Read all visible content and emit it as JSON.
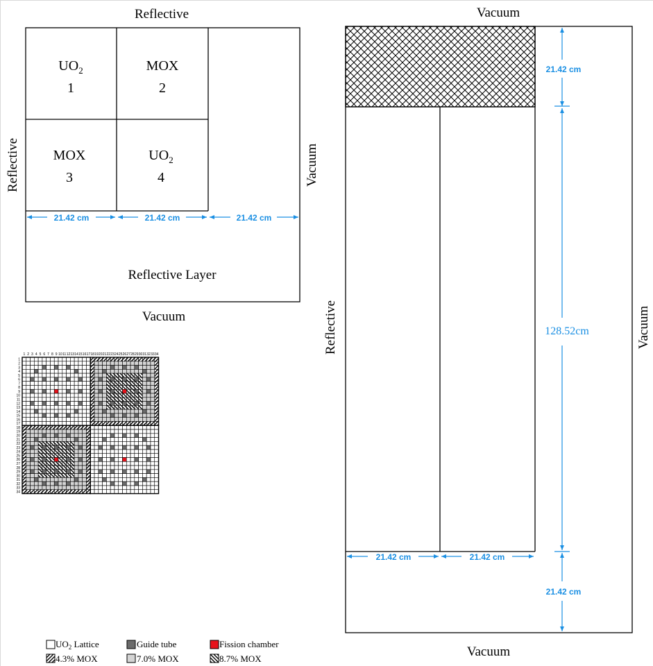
{
  "colors": {
    "line": "#000000",
    "dimension": "#1a8fe3",
    "guide_tube": "#6b6b6b",
    "fission_chamber": "#e8121b",
    "mox_7": "#d4d4d4",
    "background": "#ffffff"
  },
  "radial_view": {
    "top_boundary": "Reflective",
    "left_boundary": "Reflective",
    "right_boundary": "Vacuum",
    "bottom_boundary": "Vacuum",
    "reflector_label": "Reflective Layer",
    "assemblies": [
      {
        "name": "UO",
        "sub": "2",
        "number": "1"
      },
      {
        "name": "MOX",
        "sub": "",
        "number": "2"
      },
      {
        "name": "MOX",
        "sub": "",
        "number": "3"
      },
      {
        "name": "UO",
        "sub": "2",
        "number": "4"
      }
    ],
    "dimensions": [
      "21.42 cm",
      "21.42 cm",
      "21.42 cm"
    ]
  },
  "axial_view": {
    "top_boundary": "Vacuum",
    "left_boundary": "Reflective",
    "right_boundary": "Vacuum",
    "bottom_boundary": "Vacuum",
    "dim_top": "21.42 cm",
    "dim_core": "128.52cm",
    "dim_bottom": "21.42 cm",
    "dim_width_1": "21.42 cm",
    "dim_width_2": "21.42 cm"
  },
  "lattice": {
    "col_numbers": [
      "1",
      "2",
      "3",
      "4",
      "5",
      "6",
      "7",
      "8",
      "9",
      "10",
      "11",
      "12",
      "13",
      "14",
      "15",
      "16",
      "17",
      "18",
      "19",
      "20",
      "21",
      "22",
      "23",
      "24",
      "25",
      "26",
      "27",
      "28",
      "29",
      "30",
      "31",
      "32",
      "33",
      "34"
    ],
    "row_numbers": [
      "1",
      "2",
      "3",
      "4",
      "5",
      "6",
      "7",
      "8",
      "9",
      "10",
      "11",
      "12",
      "13",
      "14",
      "15",
      "16",
      "17",
      "18",
      "19",
      "20",
      "21",
      "22",
      "23",
      "24",
      "25",
      "26",
      "27",
      "28",
      "29",
      "30",
      "31",
      "32",
      "33",
      "34"
    ]
  },
  "legend": {
    "items": [
      {
        "key": "uo2",
        "label_main": "UO",
        "label_sub": "2",
        "label_rest": " Lattice"
      },
      {
        "key": "guide",
        "label_main": "Guide tube",
        "label_sub": "",
        "label_rest": ""
      },
      {
        "key": "fission",
        "label_main": "Fission chamber",
        "label_sub": "",
        "label_rest": ""
      },
      {
        "key": "mox43",
        "label_main": "4.3% MOX",
        "label_sub": "",
        "label_rest": ""
      },
      {
        "key": "mox70",
        "label_main": "7.0% MOX",
        "label_sub": "",
        "label_rest": ""
      },
      {
        "key": "mox87",
        "label_main": "8.7% MOX",
        "label_sub": "",
        "label_rest": ""
      }
    ]
  }
}
